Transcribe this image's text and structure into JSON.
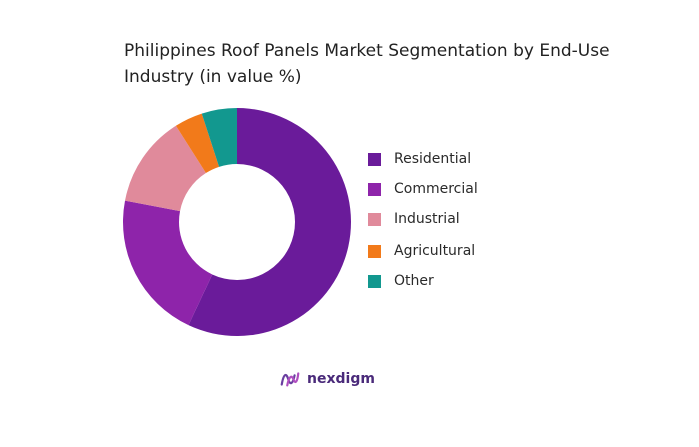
{
  "chart_data": {
    "type": "pie",
    "style": "donut",
    "title": "Philippines Roof Panels Market Segmentation by End-Use Industry (in value %)",
    "categories": [
      "Residential",
      "Commercial",
      "Industrial",
      "Agricultural",
      "Other"
    ],
    "values": [
      57,
      21,
      13,
      4,
      5
    ],
    "unit": "%",
    "colors": [
      "#6a1b9a",
      "#8e24aa",
      "#e08a9b",
      "#f27a1a",
      "#12988f"
    ],
    "legend_position": "right",
    "start_angle": "12 o'clock",
    "direction": "clockwise"
  },
  "branding": {
    "name": "nexdigm",
    "logo_icon": "nexdigm-logo-icon",
    "color": "#4a2a7a"
  }
}
